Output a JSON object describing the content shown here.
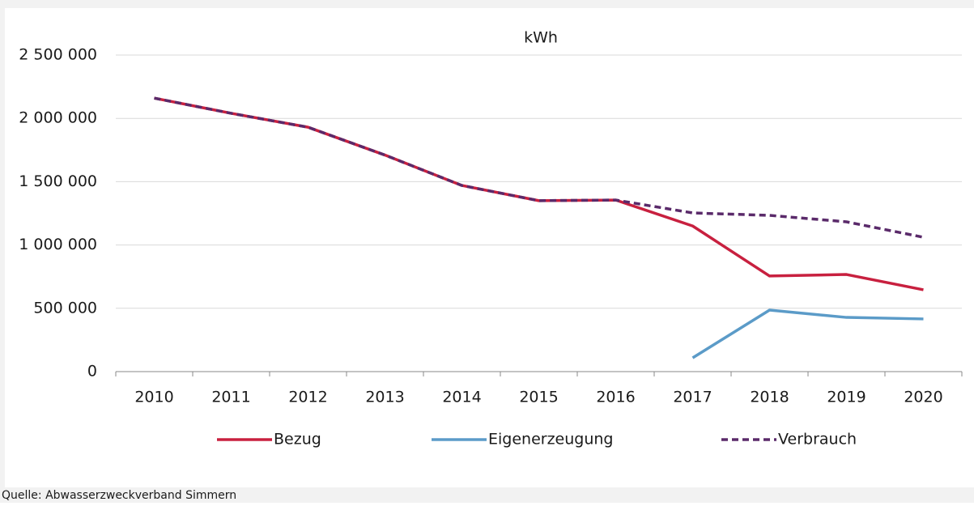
{
  "chart_data": {
    "type": "line",
    "title": "kWh",
    "categories": [
      "2010",
      "2011",
      "2012",
      "2013",
      "2014",
      "2015",
      "2016",
      "2017",
      "2018",
      "2019",
      "2020"
    ],
    "series": [
      {
        "name": "Bezug",
        "color": "#c8203f",
        "style": "solid",
        "values": [
          2160000,
          2040000,
          1930000,
          1710000,
          1470000,
          1350000,
          1355000,
          1150000,
          755000,
          767000,
          646000
        ]
      },
      {
        "name": "Eigenerzeugung",
        "color": "#5b9bc8",
        "style": "solid",
        "values": [
          null,
          null,
          null,
          null,
          null,
          null,
          null,
          109000,
          486000,
          428000,
          416000
        ]
      },
      {
        "name": "Verbrauch",
        "color": "#5a2a6a",
        "style": "dashed",
        "values": [
          2160000,
          2040000,
          1930000,
          1710000,
          1470000,
          1350000,
          1355000,
          1253000,
          1234000,
          1183000,
          1061000
        ]
      }
    ],
    "ylim": [
      0,
      2500000
    ],
    "yticks": [
      0,
      {
        "value": 500000,
        "label": "500 000"
      },
      {
        "value": 1000000,
        "label": "1 000 000"
      },
      {
        "value": 1500000,
        "label": "1 500 000"
      },
      {
        "value": 2000000,
        "label": "2 000 000"
      },
      {
        "value": 2500000,
        "label": "2 500 000"
      }
    ],
    "grid": true,
    "legend": "bottom",
    "source": "Quelle: Abwasserzweckverband Simmern"
  }
}
